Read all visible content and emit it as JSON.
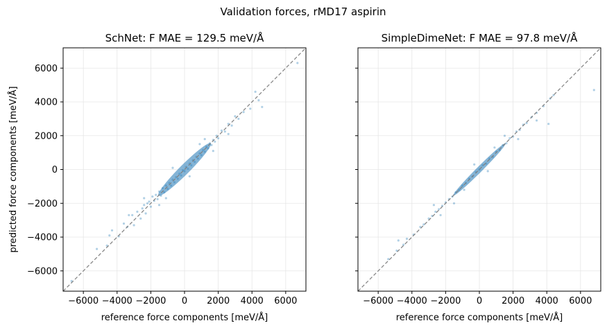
{
  "figure": {
    "suptitle": "Validation forces, rMD17 aspirin"
  },
  "colors": {
    "points": "#1f77b4",
    "diagonal": "#808080",
    "grid": "#e6e6e6",
    "axes": "#000000"
  },
  "chart_data": [
    {
      "type": "scatter",
      "title": "SchNet:  F MAE = 129.5 meV/Å",
      "xlabel": "reference force components [meV/Å]",
      "ylabel": "predicted force components [meV/Å]",
      "xlim": [
        -7200,
        7200
      ],
      "ylim": [
        -7200,
        7200
      ],
      "xticks": [
        -6000,
        -4000,
        -2000,
        0,
        2000,
        4000,
        6000
      ],
      "yticks": [
        -6000,
        -4000,
        -2000,
        0,
        2000,
        4000,
        6000
      ],
      "xtick_labels": [
        "−6000",
        "−4000",
        "−2000",
        "0",
        "2000",
        "4000",
        "6000"
      ],
      "ytick_labels": [
        "−6000",
        "−4000",
        "−2000",
        "0",
        "2000",
        "4000",
        "6000"
      ],
      "grid": true,
      "diagonal": "y = x dashed",
      "points": [
        [
          -6700,
          -6600
        ],
        [
          -5200,
          -4700
        ],
        [
          -4600,
          -4500
        ],
        [
          -4450,
          -3900
        ],
        [
          -4300,
          -3600
        ],
        [
          -3900,
          -3950
        ],
        [
          -3600,
          -3200
        ],
        [
          -3400,
          -3400
        ],
        [
          -3100,
          -2700
        ],
        [
          -3000,
          -3300
        ],
        [
          -2800,
          -2500
        ],
        [
          -2600,
          -2900
        ],
        [
          -2500,
          -2300
        ],
        [
          -2400,
          -2100
        ],
        [
          -2300,
          -2600
        ],
        [
          -2200,
          -2000
        ],
        [
          -2100,
          -1900
        ],
        [
          -2000,
          -2200
        ],
        [
          -1900,
          -1600
        ],
        [
          -1800,
          -1850
        ],
        [
          -1700,
          -1500
        ],
        [
          -1600,
          -1750
        ],
        [
          -1500,
          -1300
        ],
        [
          -1400,
          -1550
        ],
        [
          -1300,
          -1100
        ],
        [
          -1200,
          -1350
        ],
        [
          -1100,
          -950
        ],
        [
          -1000,
          -1150
        ],
        [
          -900,
          -800
        ],
        [
          -800,
          -950
        ],
        [
          -700,
          -600
        ],
        [
          -600,
          -750
        ],
        [
          -500,
          -450
        ],
        [
          -400,
          -550
        ],
        [
          -300,
          -250
        ],
        [
          -200,
          -350
        ],
        [
          -100,
          -50
        ],
        [
          0,
          -100
        ],
        [
          100,
          150
        ],
        [
          200,
          50
        ],
        [
          300,
          350
        ],
        [
          400,
          250
        ],
        [
          500,
          550
        ],
        [
          600,
          450
        ],
        [
          700,
          750
        ],
        [
          800,
          650
        ],
        [
          900,
          950
        ],
        [
          1000,
          850
        ],
        [
          1100,
          1150
        ],
        [
          1200,
          1050
        ],
        [
          1300,
          1350
        ],
        [
          1400,
          1250
        ],
        [
          1500,
          1550
        ],
        [
          1600,
          1450
        ],
        [
          1700,
          1750
        ],
        [
          1800,
          1650
        ],
        [
          1900,
          2000
        ],
        [
          2000,
          1850
        ],
        [
          2200,
          2300
        ],
        [
          2400,
          2250
        ],
        [
          2600,
          2700
        ],
        [
          2800,
          2600
        ],
        [
          3000,
          3150
        ],
        [
          3200,
          3000
        ],
        [
          3500,
          3400
        ],
        [
          3900,
          3600
        ],
        [
          4200,
          4600
        ],
        [
          4400,
          4100
        ],
        [
          4600,
          3700
        ],
        [
          6700,
          6300
        ],
        [
          -2400,
          -1700
        ],
        [
          -1500,
          -2100
        ],
        [
          -700,
          100
        ],
        [
          300,
          -400
        ],
        [
          1200,
          1800
        ],
        [
          1700,
          1100
        ],
        [
          2600,
          2100
        ],
        [
          -3300,
          -2700
        ],
        [
          900,
          1500
        ],
        [
          -1100,
          -1700
        ]
      ]
    },
    {
      "type": "scatter",
      "title": "SimpleDimeNet:  F MAE = 97.8 meV/Å",
      "xlabel": "reference force components [meV/Å]",
      "ylabel": "",
      "xlim": [
        -7200,
        7200
      ],
      "ylim": [
        -7200,
        7200
      ],
      "xticks": [
        -6000,
        -4000,
        -2000,
        0,
        2000,
        4000,
        6000
      ],
      "yticks": [
        -6000,
        -4000,
        -2000,
        0,
        2000,
        4000,
        6000
      ],
      "xtick_labels": [
        "−6000",
        "−4000",
        "−2000",
        "0",
        "2000",
        "4000",
        "6000"
      ],
      "ytick_labels": [],
      "grid": true,
      "diagonal": "y = x dashed",
      "points": [
        [
          -5400,
          -5300
        ],
        [
          -4900,
          -4800
        ],
        [
          -4500,
          -4450
        ],
        [
          -4300,
          -4100
        ],
        [
          -3900,
          -3850
        ],
        [
          -3500,
          -3400
        ],
        [
          -3300,
          -3250
        ],
        [
          -3000,
          -2900
        ],
        [
          -2800,
          -2750
        ],
        [
          -2600,
          -2500
        ],
        [
          -2400,
          -2350
        ],
        [
          -2200,
          -2150
        ],
        [
          -2000,
          -1950
        ],
        [
          -1800,
          -1750
        ],
        [
          -1600,
          -1600
        ],
        [
          -1400,
          -1350
        ],
        [
          -1200,
          -1200
        ],
        [
          -1000,
          -950
        ],
        [
          -800,
          -800
        ],
        [
          -600,
          -550
        ],
        [
          -400,
          -400
        ],
        [
          -200,
          -150
        ],
        [
          0,
          0
        ],
        [
          200,
          250
        ],
        [
          400,
          350
        ],
        [
          600,
          650
        ],
        [
          800,
          750
        ],
        [
          1000,
          1050
        ],
        [
          1200,
          1150
        ],
        [
          1400,
          1450
        ],
        [
          1600,
          1550
        ],
        [
          1800,
          1850
        ],
        [
          2000,
          1950
        ],
        [
          2200,
          2250
        ],
        [
          2400,
          2350
        ],
        [
          2600,
          2650
        ],
        [
          2800,
          2750
        ],
        [
          3100,
          3100
        ],
        [
          3400,
          3350
        ],
        [
          3800,
          3750
        ],
        [
          4200,
          4200
        ],
        [
          4400,
          4400
        ],
        [
          4100,
          2700
        ],
        [
          3400,
          2900
        ],
        [
          6800,
          4700
        ],
        [
          -2700,
          -2100
        ],
        [
          -1500,
          -2000
        ],
        [
          -300,
          300
        ],
        [
          500,
          -100
        ],
        [
          1500,
          2000
        ],
        [
          -4800,
          -4200
        ],
        [
          2300,
          1800
        ],
        [
          -2300,
          -2700
        ],
        [
          900,
          1300
        ],
        [
          -900,
          -1200
        ]
      ]
    }
  ]
}
